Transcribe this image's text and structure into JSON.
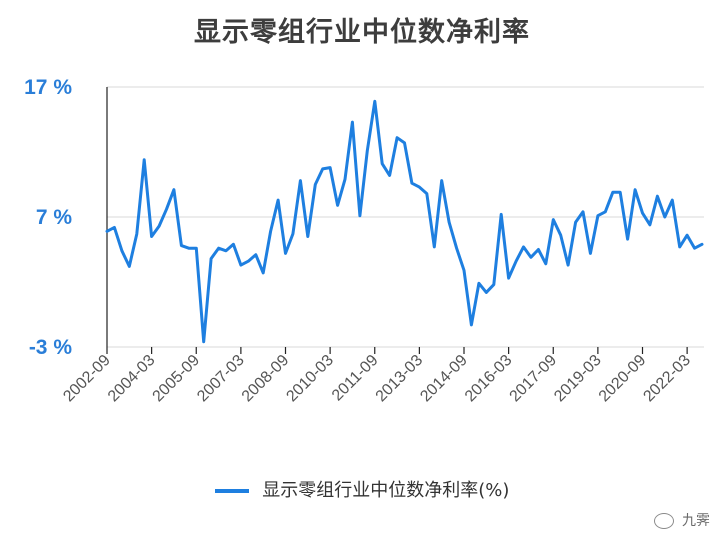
{
  "chart_data": {
    "type": "line",
    "title": "显示零组行业中位数净利率",
    "xlabel": "",
    "ylabel": "",
    "ylim": [
      -3,
      17
    ],
    "yticks": [
      -3,
      7,
      17
    ],
    "ytick_labels": [
      "-3 %",
      "7 %",
      "17 %"
    ],
    "xtick_labels": [
      "2002-09",
      "2004-03",
      "2005-09",
      "2007-03",
      "2008-09",
      "2010-03",
      "2011-09",
      "2013-03",
      "2014-09",
      "2016-03",
      "2017-09",
      "2019-03",
      "2020-09",
      "2022-03"
    ],
    "grid": "horizontal",
    "legend_position": "bottom-center",
    "series": [
      {
        "name": "显示零组行业中位数净利率(%)",
        "color": "#1e7fe0",
        "x": [
          "2002-09",
          "2002-12",
          "2003-03",
          "2003-06",
          "2003-09",
          "2003-12",
          "2004-03",
          "2004-06",
          "2004-09",
          "2004-12",
          "2005-03",
          "2005-06",
          "2005-09",
          "2005-12",
          "2006-03",
          "2006-06",
          "2006-09",
          "2006-12",
          "2007-03",
          "2007-06",
          "2007-09",
          "2007-12",
          "2008-03",
          "2008-06",
          "2008-09",
          "2008-12",
          "2009-03",
          "2009-06",
          "2009-09",
          "2009-12",
          "2010-03",
          "2010-06",
          "2010-09",
          "2010-12",
          "2011-03",
          "2011-06",
          "2011-09",
          "2011-12",
          "2012-03",
          "2012-06",
          "2012-09",
          "2012-12",
          "2013-03",
          "2013-06",
          "2013-09",
          "2013-12",
          "2014-03",
          "2014-06",
          "2014-09",
          "2014-12",
          "2015-03",
          "2015-06",
          "2015-09",
          "2015-12",
          "2016-03",
          "2016-06",
          "2016-09",
          "2016-12",
          "2017-03",
          "2017-06",
          "2017-09",
          "2017-12",
          "2018-03",
          "2018-06",
          "2018-09",
          "2018-12",
          "2019-03",
          "2019-06",
          "2019-09",
          "2019-12",
          "2020-03",
          "2020-06",
          "2020-09",
          "2020-12",
          "2021-03",
          "2021-06",
          "2021-09",
          "2021-12",
          "2022-03",
          "2022-06",
          "2022-09"
        ],
        "values": [
          5.9,
          6.2,
          4.4,
          3.2,
          5.7,
          11.4,
          5.5,
          6.3,
          7.6,
          9.1,
          4.8,
          4.6,
          4.6,
          -2.6,
          3.8,
          4.6,
          4.4,
          4.9,
          3.3,
          3.6,
          4.1,
          2.7,
          5.9,
          8.3,
          4.2,
          5.7,
          9.8,
          5.5,
          9.5,
          10.7,
          10.8,
          7.9,
          9.9,
          14.3,
          7.1,
          12.1,
          15.9,
          11.1,
          10.2,
          13.1,
          12.7,
          9.6,
          9.3,
          8.8,
          4.7,
          9.8,
          6.6,
          4.6,
          2.9,
          -1.3,
          1.9,
          1.2,
          1.8,
          7.2,
          2.3,
          3.6,
          4.7,
          3.9,
          4.5,
          3.4,
          6.8,
          5.6,
          3.3,
          6.6,
          7.4,
          4.2,
          7.1,
          7.4,
          8.9,
          8.9,
          5.3,
          9.1,
          7.3,
          6.4,
          8.6,
          7.0,
          8.3,
          4.7,
          5.6,
          4.6,
          4.9
        ]
      }
    ]
  },
  "legend": {
    "label": "显示零组行业中位数净利率(%)"
  },
  "watermark": {
    "text": "九霁"
  }
}
